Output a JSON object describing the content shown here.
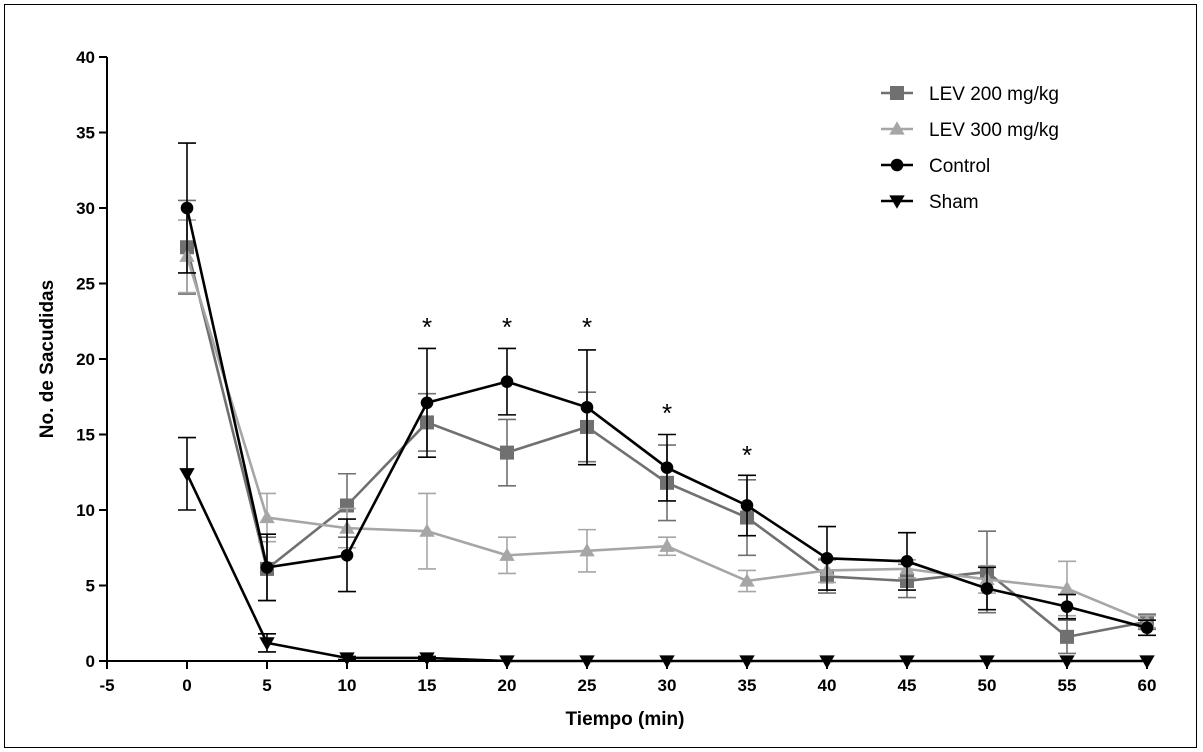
{
  "chart_data": {
    "type": "line",
    "xlabel": "Tiempo (min)",
    "ylabel": "No. de Sacudidas",
    "xlim": [
      -5,
      60
    ],
    "ylim": [
      0,
      40
    ],
    "x": [
      0,
      5,
      10,
      15,
      20,
      25,
      30,
      35,
      40,
      45,
      50,
      55,
      60
    ],
    "x_ticks": [
      "-5",
      "0",
      "5",
      "10",
      "15",
      "20",
      "25",
      "30",
      "35",
      "40",
      "45",
      "50",
      "55",
      "60"
    ],
    "y_ticks": [
      "0",
      "5",
      "10",
      "15",
      "20",
      "25",
      "30",
      "35",
      "40"
    ],
    "grid": false,
    "legend_position": "top-right",
    "series": [
      {
        "name": "LEV 200 mg/kg",
        "marker": "square",
        "color": "#707070",
        "values": [
          27.4,
          6.1,
          10.3,
          15.8,
          13.8,
          15.5,
          11.8,
          9.5,
          5.6,
          5.3,
          5.9,
          1.6,
          2.6
        ],
        "errors": [
          3.1,
          2.1,
          2.1,
          1.9,
          2.2,
          2.3,
          2.5,
          2.5,
          1.1,
          1.1,
          2.7,
          1.1,
          0.5
        ]
      },
      {
        "name": "LEV 300 mg/kg",
        "marker": "triangle-up",
        "color": "#a6a6a6",
        "values": [
          26.8,
          9.5,
          8.8,
          8.6,
          7.0,
          7.3,
          7.6,
          5.3,
          6.0,
          6.1,
          5.4,
          4.8,
          2.6
        ],
        "errors": [
          2.4,
          1.6,
          1.3,
          2.5,
          1.2,
          1.4,
          0.6,
          0.7,
          0.8,
          0.6,
          0.9,
          1.8,
          0.4
        ]
      },
      {
        "name": "Control",
        "marker": "circle",
        "color": "#000000",
        "values": [
          30.0,
          6.2,
          7.0,
          17.1,
          18.5,
          16.8,
          12.8,
          10.3,
          6.8,
          6.6,
          4.8,
          3.6,
          2.2
        ],
        "errors": [
          4.3,
          2.2,
          2.4,
          3.6,
          2.2,
          3.8,
          2.2,
          2.0,
          2.1,
          1.9,
          1.4,
          0.8,
          0.5
        ]
      },
      {
        "name": "Sham",
        "marker": "triangle-down",
        "color": "#000000",
        "values": [
          12.4,
          1.2,
          0.2,
          0.2,
          0.0,
          0.0,
          0.0,
          0.0,
          0.0,
          0.0,
          0.0,
          0.0,
          0.0
        ],
        "errors": [
          2.4,
          0.6,
          0.1,
          0.1,
          0,
          0,
          0,
          0,
          0,
          0,
          0,
          0,
          0
        ]
      }
    ],
    "annotations": [
      {
        "text": "*",
        "x": 15,
        "y": 22.2
      },
      {
        "text": "*",
        "x": 20,
        "y": 22.2
      },
      {
        "text": "*",
        "x": 25,
        "y": 22.2
      },
      {
        "text": "*",
        "x": 30,
        "y": 16.5
      },
      {
        "text": "*",
        "x": 35,
        "y": 13.7
      }
    ]
  }
}
